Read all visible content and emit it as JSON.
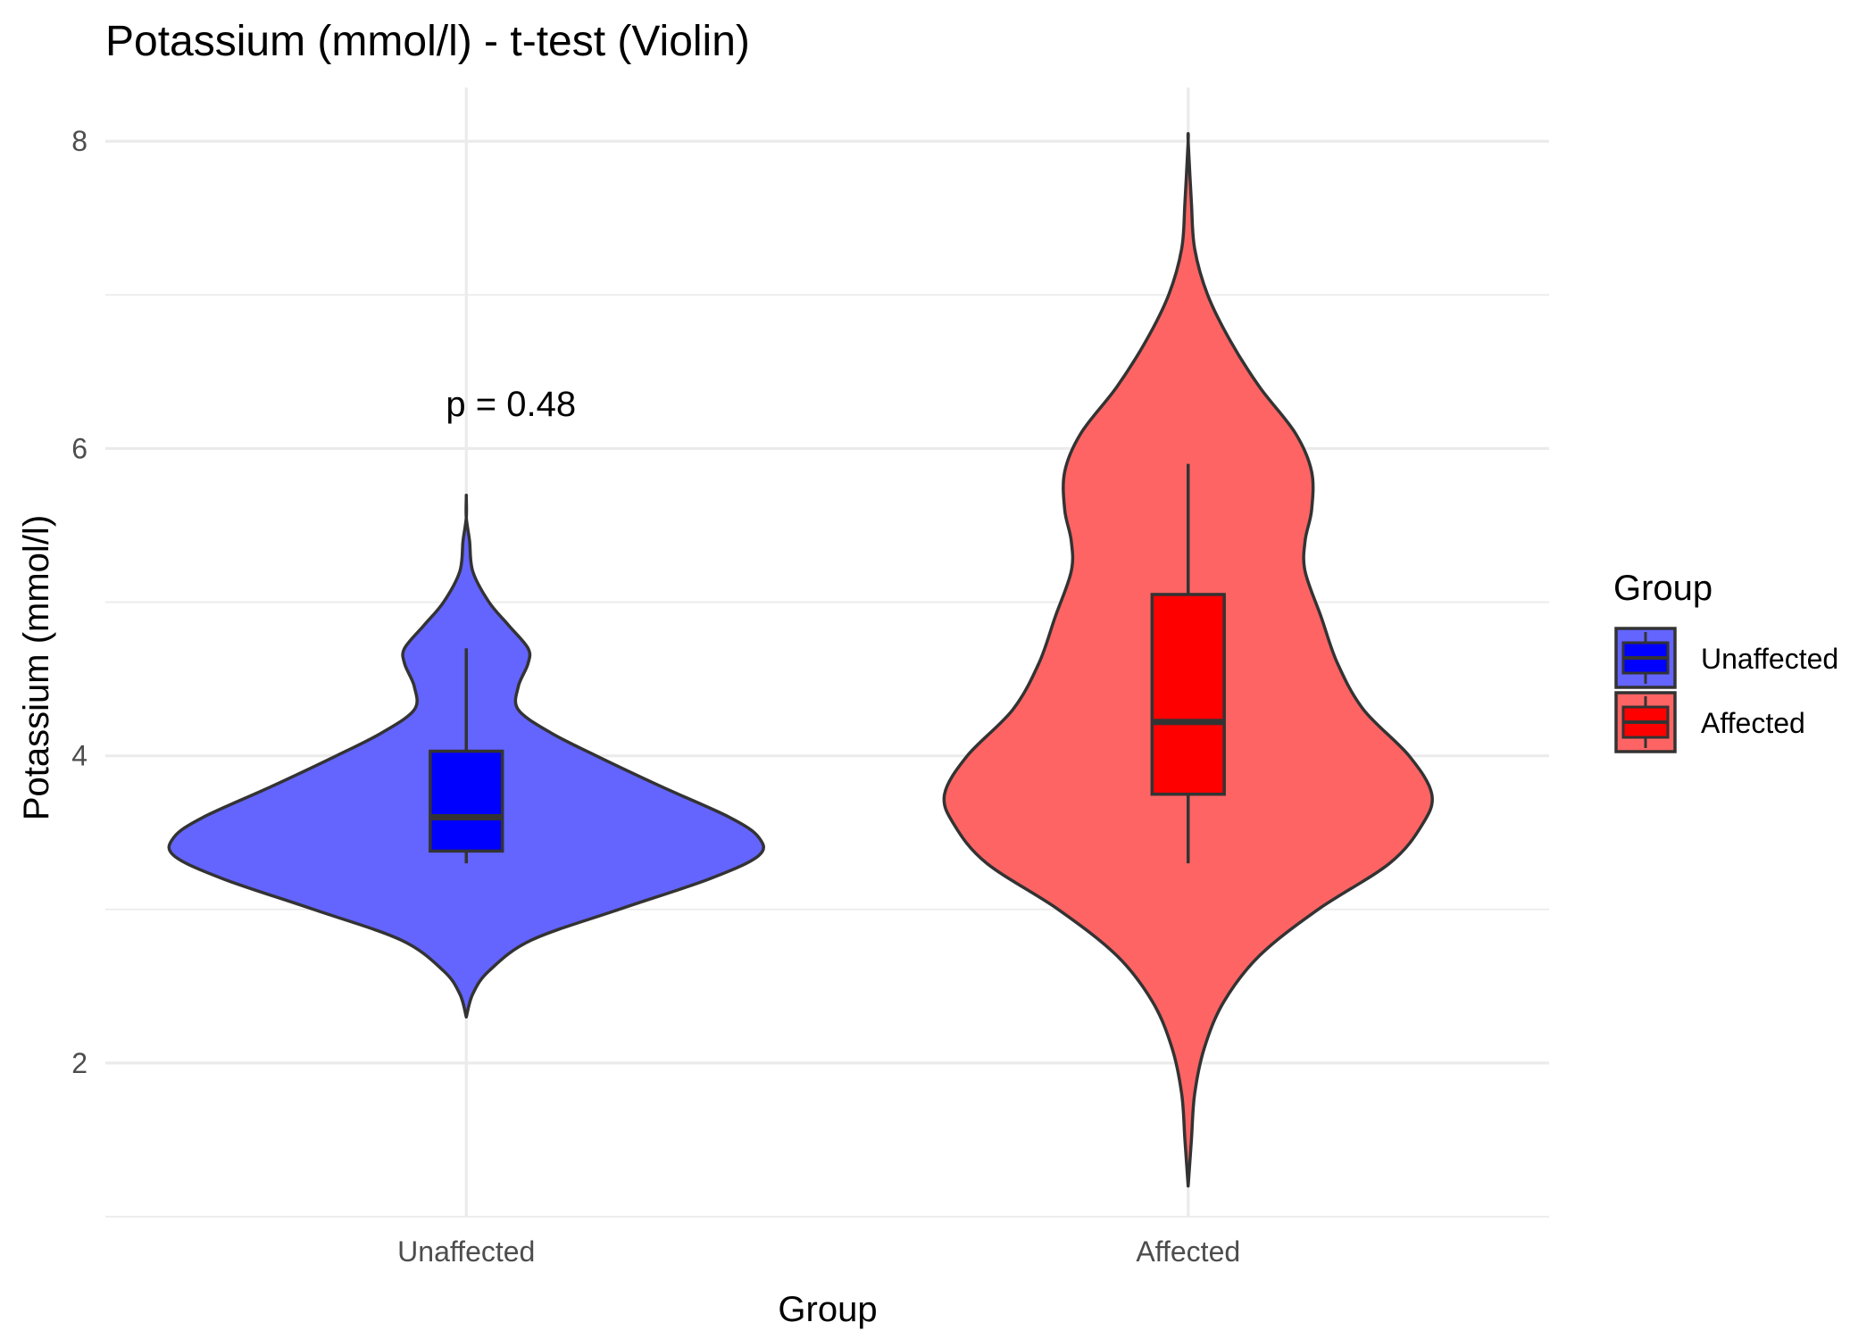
{
  "chart_data": {
    "type": "violin",
    "title": "Potassium (mmol/l) - t-test (Violin)",
    "xlabel": "Group",
    "ylabel": "Potassium (mmol/l)",
    "ylim": [
      1.0,
      8.35
    ],
    "yticks": [
      2,
      4,
      6,
      8
    ],
    "categories": [
      "Unaffected",
      "Affected"
    ],
    "grid": true,
    "legend": {
      "title": "Group",
      "position": "right",
      "entries": [
        "Unaffected",
        "Affected"
      ]
    },
    "annotation": {
      "text": "p = 0.48",
      "x": "Unaffected",
      "y": 6.3
    },
    "series": [
      {
        "name": "Unaffected",
        "color": "#0000ff",
        "violin_fill": "#6464ff",
        "box": {
          "whisker_low": 3.3,
          "q1": 3.38,
          "median": 3.6,
          "q3": 4.03,
          "whisker_high": 4.7
        },
        "density": [
          [
            2.3,
            0.0
          ],
          [
            2.45,
            0.02
          ],
          [
            2.6,
            0.07
          ],
          [
            2.8,
            0.2
          ],
          [
            3.0,
            0.47
          ],
          [
            3.2,
            0.75
          ],
          [
            3.35,
            0.9
          ],
          [
            3.47,
            0.9
          ],
          [
            3.6,
            0.81
          ],
          [
            3.8,
            0.6
          ],
          [
            4.0,
            0.4
          ],
          [
            4.15,
            0.26
          ],
          [
            4.3,
            0.16
          ],
          [
            4.45,
            0.16
          ],
          [
            4.6,
            0.19
          ],
          [
            4.7,
            0.19
          ],
          [
            4.85,
            0.13
          ],
          [
            5.0,
            0.07
          ],
          [
            5.2,
            0.02
          ],
          [
            5.4,
            0.01
          ],
          [
            5.55,
            0.0
          ],
          [
            5.68,
            0.0
          ]
        ]
      },
      {
        "name": "Affected",
        "color": "#ff0000",
        "violin_fill": "#ff6464",
        "box": {
          "whisker_low": 3.3,
          "q1": 3.75,
          "median": 4.22,
          "q3": 5.05,
          "whisker_high": 5.9
        },
        "density": [
          [
            1.2,
            0.0
          ],
          [
            1.5,
            0.01
          ],
          [
            1.8,
            0.02
          ],
          [
            2.1,
            0.05
          ],
          [
            2.4,
            0.11
          ],
          [
            2.7,
            0.22
          ],
          [
            3.0,
            0.4
          ],
          [
            3.3,
            0.62
          ],
          [
            3.55,
            0.72
          ],
          [
            3.75,
            0.75
          ],
          [
            4.0,
            0.68
          ],
          [
            4.3,
            0.54
          ],
          [
            4.6,
            0.46
          ],
          [
            4.9,
            0.41
          ],
          [
            5.2,
            0.36
          ],
          [
            5.4,
            0.36
          ],
          [
            5.6,
            0.38
          ],
          [
            5.85,
            0.38
          ],
          [
            6.1,
            0.33
          ],
          [
            6.4,
            0.22
          ],
          [
            6.7,
            0.13
          ],
          [
            7.0,
            0.06
          ],
          [
            7.3,
            0.02
          ],
          [
            7.6,
            0.01
          ],
          [
            8.0,
            0.0
          ]
        ]
      }
    ]
  }
}
